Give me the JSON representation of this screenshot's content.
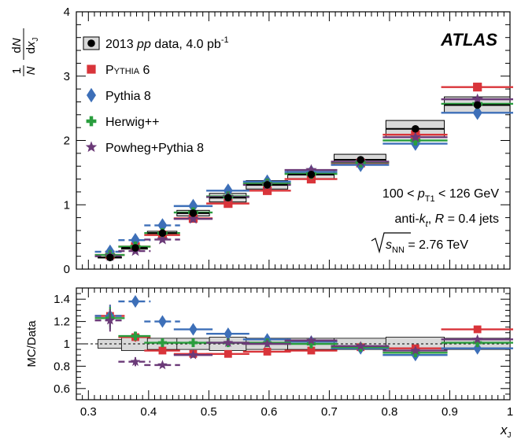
{
  "chart_data": {
    "type": "scatter",
    "experiment_label": "ATLAS",
    "x": [
      0.336,
      0.378,
      0.423,
      0.474,
      0.532,
      0.597,
      0.67,
      0.752,
      0.843,
      0.946
    ],
    "bin_edges": [
      0.316,
      0.355,
      0.398,
      0.447,
      0.501,
      0.562,
      0.631,
      0.708,
      0.794,
      0.891,
      1.0
    ],
    "top_panel": {
      "ylabel_num": "1",
      "ylabel_den": "N",
      "ylabel_frac_num": "dN",
      "ylabel_frac_den": "dx",
      "ylabel_frac_den_sub": "J",
      "ylim": [
        0,
        4
      ],
      "yticks": [
        "0",
        "1",
        "2",
        "3",
        "4"
      ],
      "series": [
        {
          "name": "2013 pp data, 4.0 pb-1",
          "values": [
            0.18,
            0.33,
            0.56,
            0.87,
            1.11,
            1.31,
            1.47,
            1.7,
            2.18,
            2.55
          ],
          "color": "#000000",
          "marker": "circle"
        },
        {
          "name": "Pythia 6",
          "values": [
            0.22,
            0.35,
            0.53,
            0.79,
            1.02,
            1.22,
            1.4,
            1.65,
            2.09,
            2.83
          ],
          "color": "#d9343a",
          "marker": "square"
        },
        {
          "name": "Pythia 8",
          "values": [
            0.27,
            0.45,
            0.68,
            0.98,
            1.22,
            1.36,
            1.51,
            1.62,
            1.95,
            2.43
          ],
          "color": "#3d6fb8",
          "marker": "diamond"
        },
        {
          "name": "Herwig++",
          "values": [
            0.22,
            0.35,
            0.56,
            0.88,
            1.13,
            1.33,
            1.48,
            1.66,
            2.0,
            2.57
          ],
          "color": "#2a9d3e",
          "marker": "plus"
        },
        {
          "name": "Powheg+Pythia 8",
          "values": [
            0.2,
            0.28,
            0.46,
            0.78,
            1.12,
            1.31,
            1.54,
            1.67,
            2.05,
            2.64
          ],
          "color": "#6b3a78",
          "marker": "star"
        }
      ]
    },
    "bottom_panel": {
      "ylabel": "MC/Data",
      "xlabel": "x",
      "xlabel_sub": "J",
      "ylim": [
        0.5,
        1.5
      ],
      "yticks": [
        "0.6",
        "0.8",
        "1",
        "1.2",
        "1.4"
      ],
      "xticks": [
        "0.3",
        "0.4",
        "0.5",
        "0.6",
        "0.7",
        "0.8",
        "0.9",
        "1"
      ],
      "xlim": [
        0.28,
        1.0
      ],
      "data_uncertainty": [
        0.04,
        0.06,
        0.05,
        0.05,
        0.06,
        0.05,
        0.05,
        0.05,
        0.06,
        0.05
      ],
      "ratios": [
        {
          "name": "Pythia 6",
          "values": [
            1.25,
            1.06,
            0.94,
            0.91,
            0.91,
            0.93,
            0.94,
            0.97,
            0.96,
            1.13
          ]
        },
        {
          "name": "Pythia 8",
          "values": [
            1.25,
            1.38,
            1.2,
            1.13,
            1.09,
            1.04,
            1.02,
            0.96,
            0.9,
            0.96
          ]
        },
        {
          "name": "Herwig++",
          "values": [
            1.23,
            1.07,
            1.01,
            1.01,
            1.01,
            1.01,
            1.0,
            0.97,
            0.92,
            1.01
          ]
        },
        {
          "name": "Powheg+Pythia 8",
          "values": [
            1.21,
            0.84,
            0.81,
            0.9,
            1.01,
            1.0,
            1.03,
            0.98,
            0.94,
            1.04
          ]
        }
      ],
      "ratio_errors": [
        0.1,
        0.04,
        0.02,
        0.02,
        0.02,
        0.02,
        0.02,
        0.02,
        0.02,
        0.02
      ]
    },
    "legend": [
      {
        "label_main": "2013 ",
        "label_ital": "pp",
        "label_tail": " data, 4.0 pb",
        "label_sup": "-1",
        "marker": "circle-box",
        "color": "#000000"
      },
      {
        "label_main": "P",
        "label_small": "YTHIA",
        "label_tail": " 6",
        "marker": "square",
        "color": "#d9343a"
      },
      {
        "label_main": "Pythia 8",
        "marker": "diamond",
        "color": "#3d6fb8"
      },
      {
        "label_main": "Herwig++",
        "marker": "plus",
        "color": "#2a9d3e"
      },
      {
        "label_main": "Powheg+Pythia 8",
        "marker": "star",
        "color": "#6b3a78"
      }
    ],
    "annotations": {
      "pt_range_left": "100 < ",
      "pt_symbol": "p",
      "pt_sub": "T1",
      "pt_range_right": " < 126 GeV",
      "algo_left": "anti-",
      "algo_k": "k",
      "algo_sub": "t",
      "algo_mid": ", ",
      "algo_R": "R",
      "algo_right": " = 0.4 jets",
      "sqrt_s": "s",
      "sqrt_sub": "NN",
      "energy": " = 2.76 TeV"
    }
  }
}
